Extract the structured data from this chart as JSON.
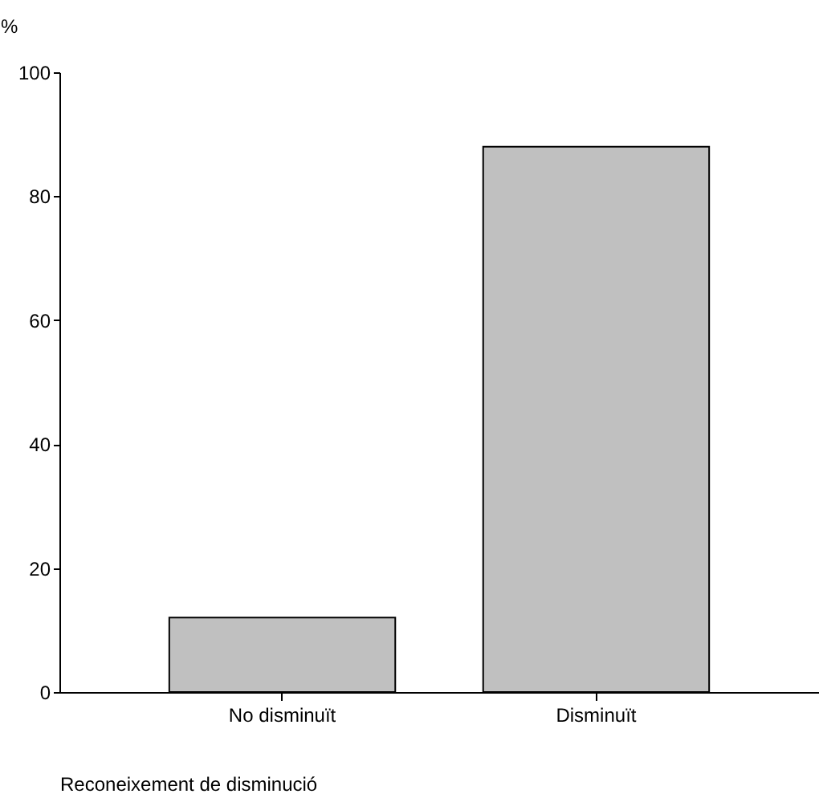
{
  "chart_data": {
    "type": "bar",
    "categories": [
      "No disminuït",
      "Disminuït"
    ],
    "values": [
      12,
      88
    ],
    "color": "#c0c0c0",
    "ylabel": "%",
    "xlabel": "Reconeixement de disminució",
    "ylim": [
      0,
      100
    ],
    "yticks": [
      0,
      20,
      40,
      60,
      80,
      100
    ],
    "grid": false
  }
}
